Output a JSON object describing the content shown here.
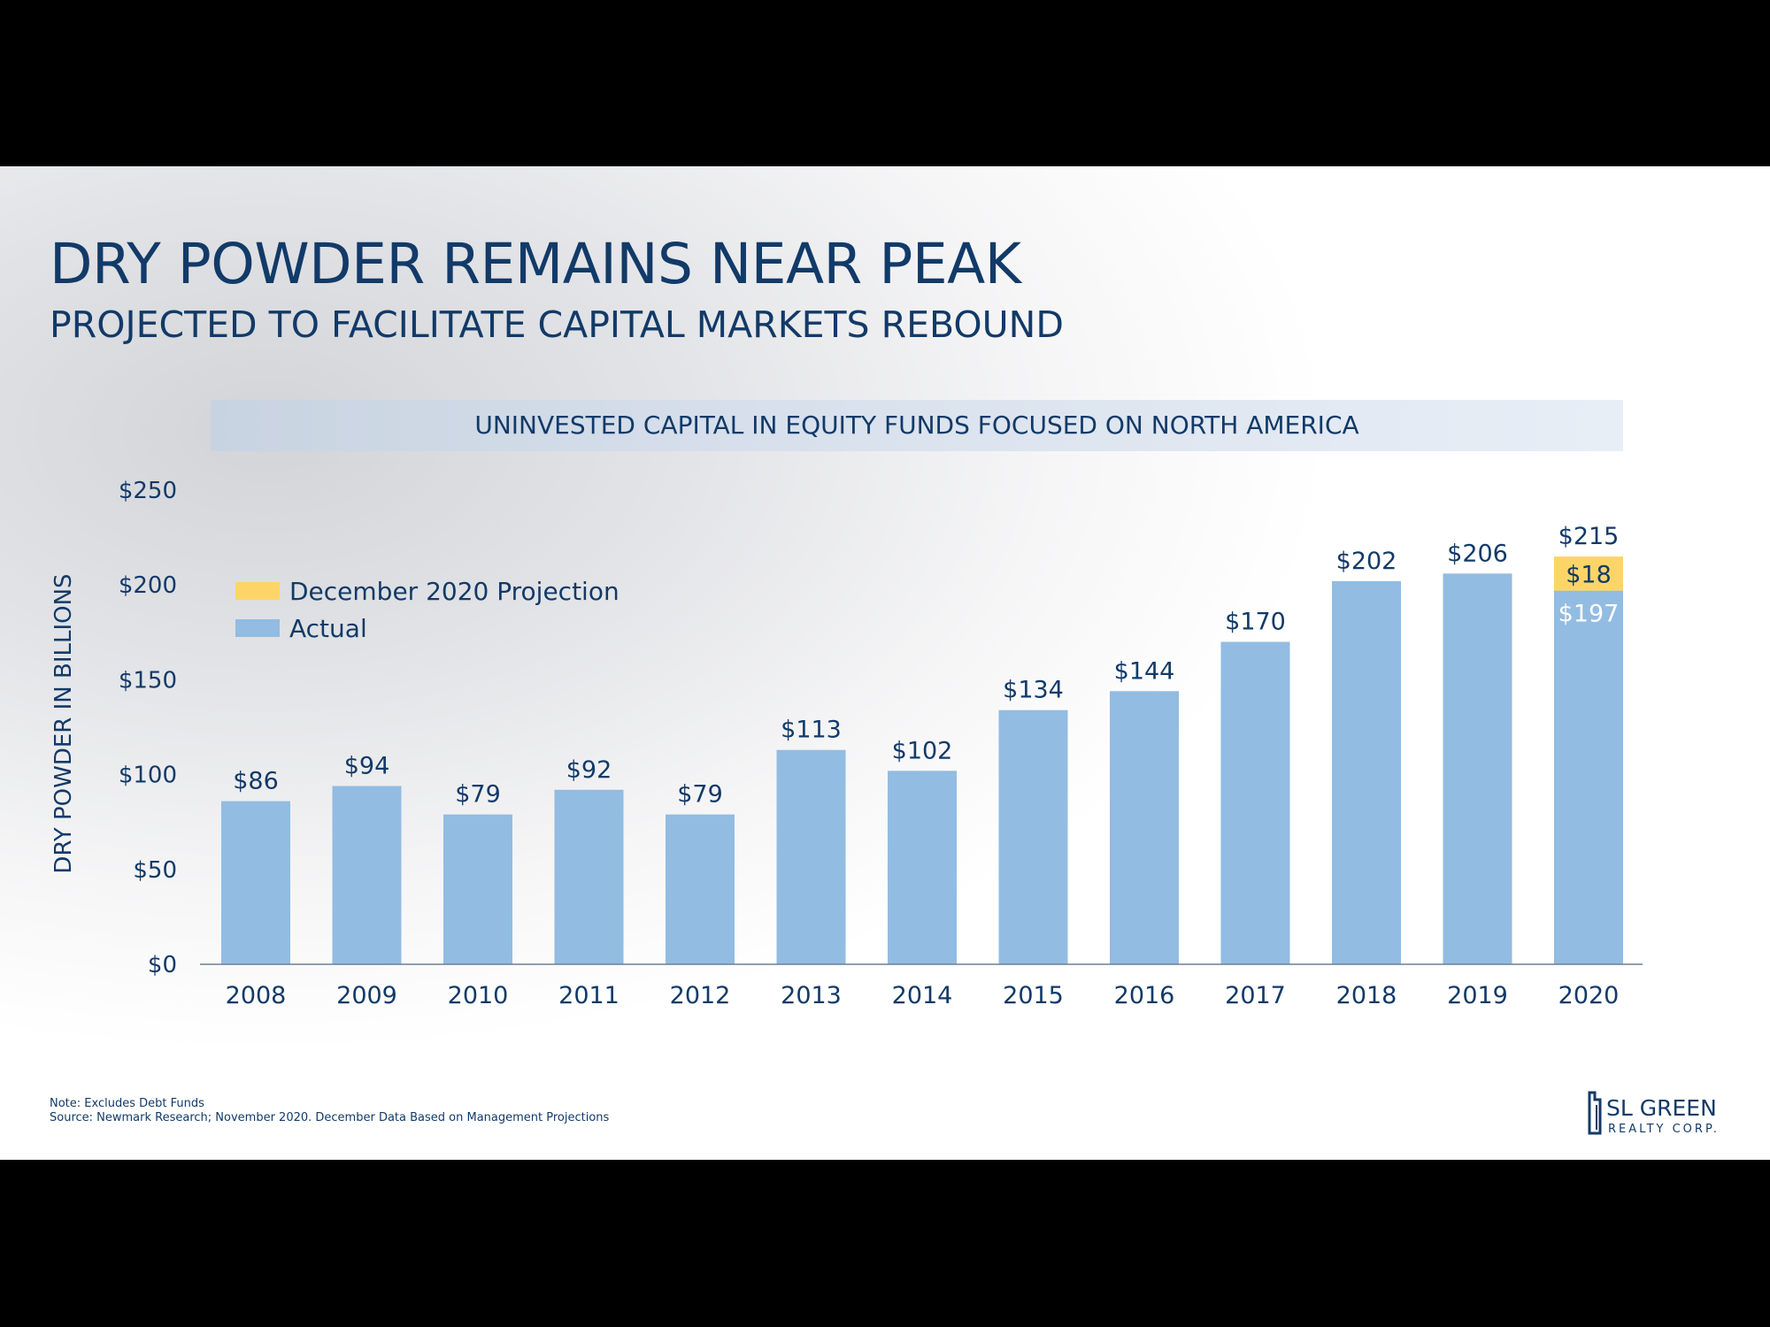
{
  "slide": {
    "title": "DRY POWDER REMAINS NEAR PEAK",
    "subtitle": "PROJECTED TO FACILITATE CAPITAL MARKETS REBOUND",
    "note": "Note: Excludes Debt Funds",
    "source": "Source: Newmark Research; November 2020. December Data Based on Management Projections",
    "logo": {
      "name": "SL GREEN",
      "sub": "REALTY CORP."
    }
  },
  "chart_data": {
    "type": "bar",
    "title": "UNINVESTED CAPITAL IN EQUITY FUNDS FOCUSED ON NORTH AMERICA",
    "ylabel": "DRY POWDER IN BILLIONS",
    "xlabel": "",
    "ylim": [
      0,
      250
    ],
    "yticks": [
      0,
      50,
      100,
      150,
      200,
      250
    ],
    "ytick_labels": [
      "$0",
      "$50",
      "$100",
      "$150",
      "$200",
      "$250"
    ],
    "categories": [
      "2008",
      "2009",
      "2010",
      "2011",
      "2012",
      "2013",
      "2014",
      "2015",
      "2016",
      "2017",
      "2018",
      "2019",
      "2020"
    ],
    "series": [
      {
        "name": "Actual",
        "color": "#92bce2",
        "values": [
          86,
          94,
          79,
          92,
          79,
          113,
          102,
          134,
          144,
          170,
          202,
          206,
          197
        ]
      },
      {
        "name": "December 2020 Projection",
        "color": "#fdd567",
        "values": [
          0,
          0,
          0,
          0,
          0,
          0,
          0,
          0,
          0,
          0,
          0,
          0,
          18
        ]
      }
    ],
    "data_labels": [
      "$86",
      "$94",
      "$79",
      "$92",
      "$79",
      "$113",
      "$102",
      "$134",
      "$144",
      "$170",
      "$202",
      "$206",
      "$215"
    ],
    "segment_labels": {
      "category": "2020",
      "actual": "$197",
      "projection": "$18"
    },
    "legend_position": "upper-left",
    "grid": false
  }
}
